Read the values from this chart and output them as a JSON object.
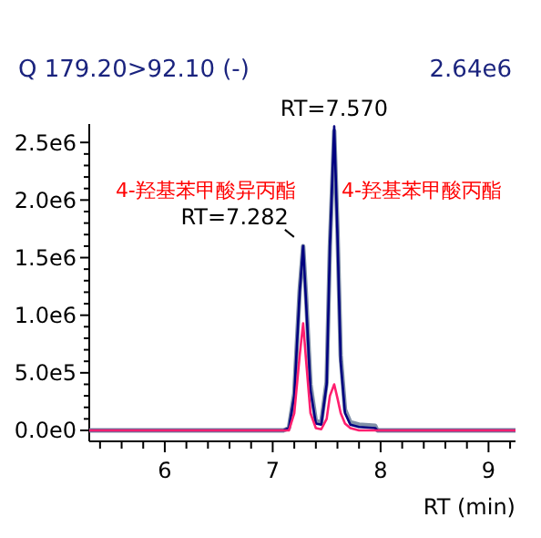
{
  "chart_data": {
    "type": "line",
    "title": "Q 179.20>92.10 (-)",
    "xlabel": "RT (min)",
    "annotations": [
      "2.64e6",
      {
        "text": "RT=7.282",
        "x": 7.282,
        "y": 1600000
      },
      {
        "text": "RT=7.570",
        "x": 7.57,
        "y": 2640000
      },
      "4-羟基苯甲酸异丙酯",
      "4-羟基苯甲酸丙酯"
    ],
    "x": [
      5.3,
      7.1,
      7.15,
      7.2,
      7.25,
      7.282,
      7.31,
      7.35,
      7.4,
      7.45,
      7.5,
      7.53,
      7.57,
      7.6,
      7.63,
      7.67,
      7.72,
      7.8,
      7.95,
      7.97,
      9.25
    ],
    "series": [
      {
        "color": "#8090a8",
        "values": [
          0,
          0,
          20000,
          320000,
          1220000,
          1600000,
          1150000,
          400000,
          80000,
          70000,
          420000,
          1600000,
          2600000,
          1750000,
          650000,
          180000,
          70000,
          50000,
          40000,
          0,
          0
        ]
      },
      {
        "color": "#000080",
        "values": [
          0,
          0,
          20000,
          300000,
          1200000,
          1600000,
          1100000,
          350000,
          60000,
          50000,
          400000,
          1600000,
          2640000,
          1700000,
          600000,
          150000,
          50000,
          30000,
          20000,
          0,
          0
        ]
      },
      {
        "color": "#ff1f6f",
        "values": [
          0,
          0,
          0,
          150000,
          650000,
          930000,
          600000,
          150000,
          20000,
          10000,
          100000,
          300000,
          400000,
          280000,
          150000,
          60000,
          20000,
          0,
          0,
          0,
          0
        ]
      }
    ],
    "xlim": [
      5.3,
      9.25
    ],
    "ylim": [
      -95000,
      2660000
    ],
    "xticks": [
      {
        "value": 5.4,
        "label": null
      },
      {
        "value": 5.6,
        "label": null
      },
      {
        "value": 5.8,
        "label": null
      },
      6,
      {
        "value": 6.2,
        "label": null
      },
      {
        "value": 6.4,
        "label": null
      },
      {
        "value": 6.6,
        "label": null
      },
      {
        "value": 6.8,
        "label": null
      },
      7,
      {
        "value": 7.2,
        "label": null
      },
      {
        "value": 7.4,
        "label": null
      },
      {
        "value": 7.6,
        "label": null
      },
      {
        "value": 7.8,
        "label": null
      },
      8,
      {
        "value": 8.2,
        "label": null
      },
      {
        "value": 8.4,
        "label": null
      },
      {
        "value": 8.6,
        "label": null
      },
      {
        "value": 8.8,
        "label": null
      },
      9,
      {
        "value": 9.2,
        "label": null
      }
    ],
    "yticks": [
      {
        "value": 0,
        "label": "0.0e0"
      },
      {
        "value": 100000,
        "label": null
      },
      {
        "value": 200000,
        "label": null
      },
      {
        "value": 300000,
        "label": null
      },
      {
        "value": 400000,
        "label": null
      },
      {
        "value": 500000,
        "label": "5.0e5"
      },
      {
        "value": 600000,
        "label": null
      },
      {
        "value": 700000,
        "label": null
      },
      {
        "value": 800000,
        "label": null
      },
      {
        "value": 900000,
        "label": null
      },
      {
        "value": 1000000,
        "label": "1.0e6"
      },
      {
        "value": 1100000,
        "label": null
      },
      {
        "value": 1200000,
        "label": null
      },
      {
        "value": 1300000,
        "label": null
      },
      {
        "value": 1400000,
        "label": null
      },
      {
        "value": 1500000,
        "label": "1.5e6"
      },
      {
        "value": 1600000,
        "label": null
      },
      {
        "value": 1700000,
        "label": null
      },
      {
        "value": 1800000,
        "label": null
      },
      {
        "value": 1900000,
        "label": null
      },
      {
        "value": 2000000,
        "label": "2.0e6"
      },
      {
        "value": 2100000,
        "label": null
      },
      {
        "value": 2200000,
        "label": null
      },
      {
        "value": 2300000,
        "label": null
      },
      {
        "value": 2400000,
        "label": null
      },
      {
        "value": 2500000,
        "label": "2.5e6"
      }
    ],
    "grid": false
  }
}
